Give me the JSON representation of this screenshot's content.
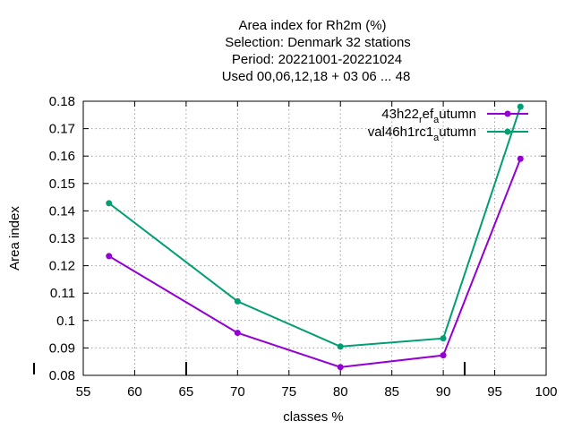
{
  "chart_data": {
    "type": "line",
    "title_lines": [
      "Area index  for Rh2m (%)",
      "Selection: Denmark     32 stations",
      "Period: 20221001-20221024",
      "Used  00,06,12,18  + 03 06 ... 48"
    ],
    "xlabel": "classes %",
    "ylabel": "Area index",
    "xlim": [
      55,
      100
    ],
    "ylim": [
      0.08,
      0.18
    ],
    "xticks": [
      "55",
      "60",
      "65",
      "70",
      "75",
      "80",
      "85",
      "90",
      "95",
      "100"
    ],
    "yticks": [
      "0.08",
      "0.09",
      "0.1",
      "0.11",
      "0.12",
      "0.13",
      "0.14",
      "0.15",
      "0.16",
      "0.17",
      "0.18"
    ],
    "grid": true,
    "legend_position": "top-right",
    "series": [
      {
        "name_parts": {
          "base": "43h22",
          "sub1": "r",
          "mid": "ef",
          "sub2": "a",
          "tail": "utumn"
        },
        "color": "#9400d3",
        "x": [
          57.5,
          70,
          80,
          90,
          97.5
        ],
        "y": [
          0.1235,
          0.0955,
          0.083,
          0.0873,
          0.159
        ]
      },
      {
        "name_parts": {
          "base": "val46h1rc1",
          "sub1": "",
          "mid": "",
          "sub2": "a",
          "tail": "utumn"
        },
        "color": "#009e73",
        "x": [
          57.5,
          70,
          80,
          90,
          97.5
        ],
        "y": [
          0.1428,
          0.107,
          0.0905,
          0.0935,
          0.178
        ]
      }
    ]
  }
}
